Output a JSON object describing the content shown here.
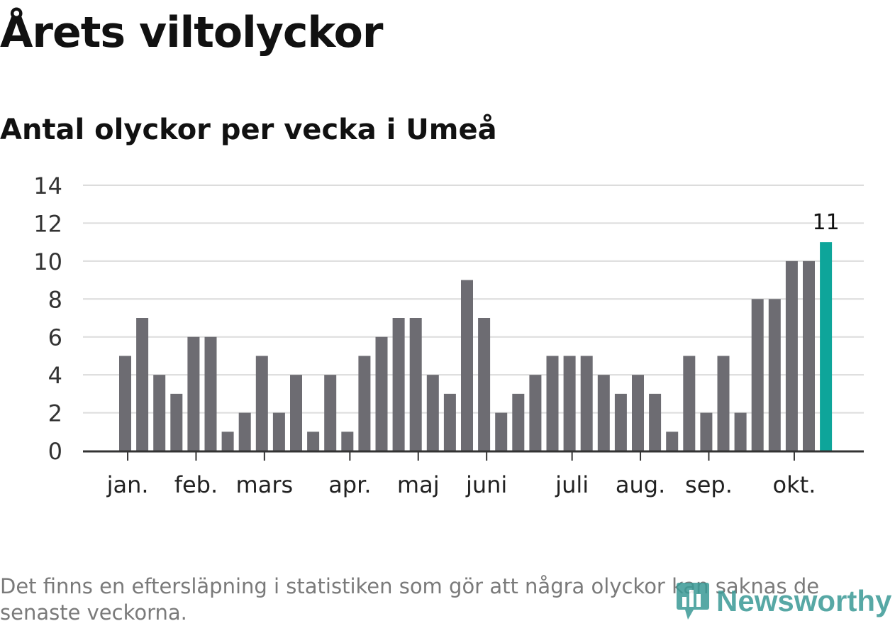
{
  "title": "Årets viltolyckor",
  "subtitle": "Antal olyckor per vecka i Umeå",
  "footnote": "Det finns en eftersläpning i statistiken som gör att några olyckor kan saknas de senaste veckorna.",
  "brand": "Newsworthy",
  "colors": {
    "bar": "#6d6c72",
    "highlight": "#0ea59a",
    "grid": "#dcdcdc",
    "axis": "#333333"
  },
  "chart_data": {
    "type": "bar",
    "title": "Antal olyckor per vecka i Umeå",
    "xlabel": "",
    "ylabel": "",
    "ylim": [
      0,
      14
    ],
    "yticks": [
      0,
      2,
      4,
      6,
      8,
      10,
      12,
      14
    ],
    "grid": true,
    "values": [
      5,
      7,
      4,
      3,
      6,
      6,
      1,
      2,
      5,
      2,
      4,
      1,
      4,
      1,
      5,
      6,
      7,
      7,
      4,
      3,
      9,
      7,
      2,
      3,
      4,
      5,
      5,
      5,
      4,
      3,
      4,
      3,
      1,
      5,
      2,
      5,
      2,
      8,
      8,
      10,
      10,
      11
    ],
    "highlight_index": 41,
    "highlight_label": "11",
    "month_labels": [
      {
        "label": "jan.",
        "week_index": 0.5
      },
      {
        "label": "feb.",
        "week_index": 4.5
      },
      {
        "label": "mars",
        "week_index": 8.5
      },
      {
        "label": "apr.",
        "week_index": 13.5
      },
      {
        "label": "maj",
        "week_index": 17.5
      },
      {
        "label": "juni",
        "week_index": 21.5
      },
      {
        "label": "juli",
        "week_index": 26.5
      },
      {
        "label": "aug.",
        "week_index": 30.5
      },
      {
        "label": "sep.",
        "week_index": 34.5
      },
      {
        "label": "okt.",
        "week_index": 39.5
      }
    ]
  }
}
